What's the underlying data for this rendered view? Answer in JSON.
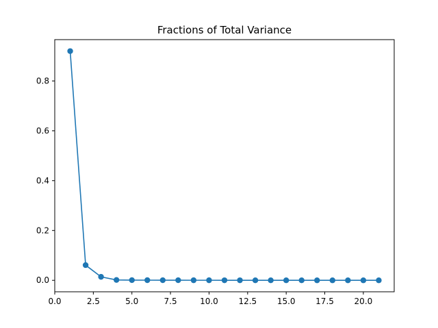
{
  "chart_data": {
    "type": "line",
    "title": "Fractions of Total Variance",
    "xlabel": "",
    "ylabel": "",
    "xlim": [
      0,
      22
    ],
    "ylim": [
      -0.046,
      0.966
    ],
    "xticks": [
      0.0,
      2.5,
      5.0,
      7.5,
      10.0,
      12.5,
      15.0,
      17.5,
      20.0
    ],
    "xtick_labels": [
      "0.0",
      "2.5",
      "5.0",
      "7.5",
      "10.0",
      "12.5",
      "15.0",
      "17.5",
      "20.0"
    ],
    "yticks": [
      0.0,
      0.2,
      0.4,
      0.6,
      0.8
    ],
    "ytick_labels": [
      "0.0",
      "0.2",
      "0.4",
      "0.6",
      "0.8"
    ],
    "grid": false,
    "color": "#1f77b4",
    "marker": "circle",
    "x": [
      1,
      2,
      3,
      4,
      5,
      6,
      7,
      8,
      9,
      10,
      11,
      12,
      13,
      14,
      15,
      16,
      17,
      18,
      19,
      20,
      21
    ],
    "values": [
      0.92,
      0.061,
      0.014,
      0.0015,
      0.0008,
      0.0006,
      0.0005,
      0.0004,
      0.0003,
      0.0003,
      0.0002,
      0.0002,
      0.0001,
      0.0001,
      0.0001,
      0.0001,
      0.0,
      0.0,
      0.0,
      0.0,
      0.0
    ]
  }
}
